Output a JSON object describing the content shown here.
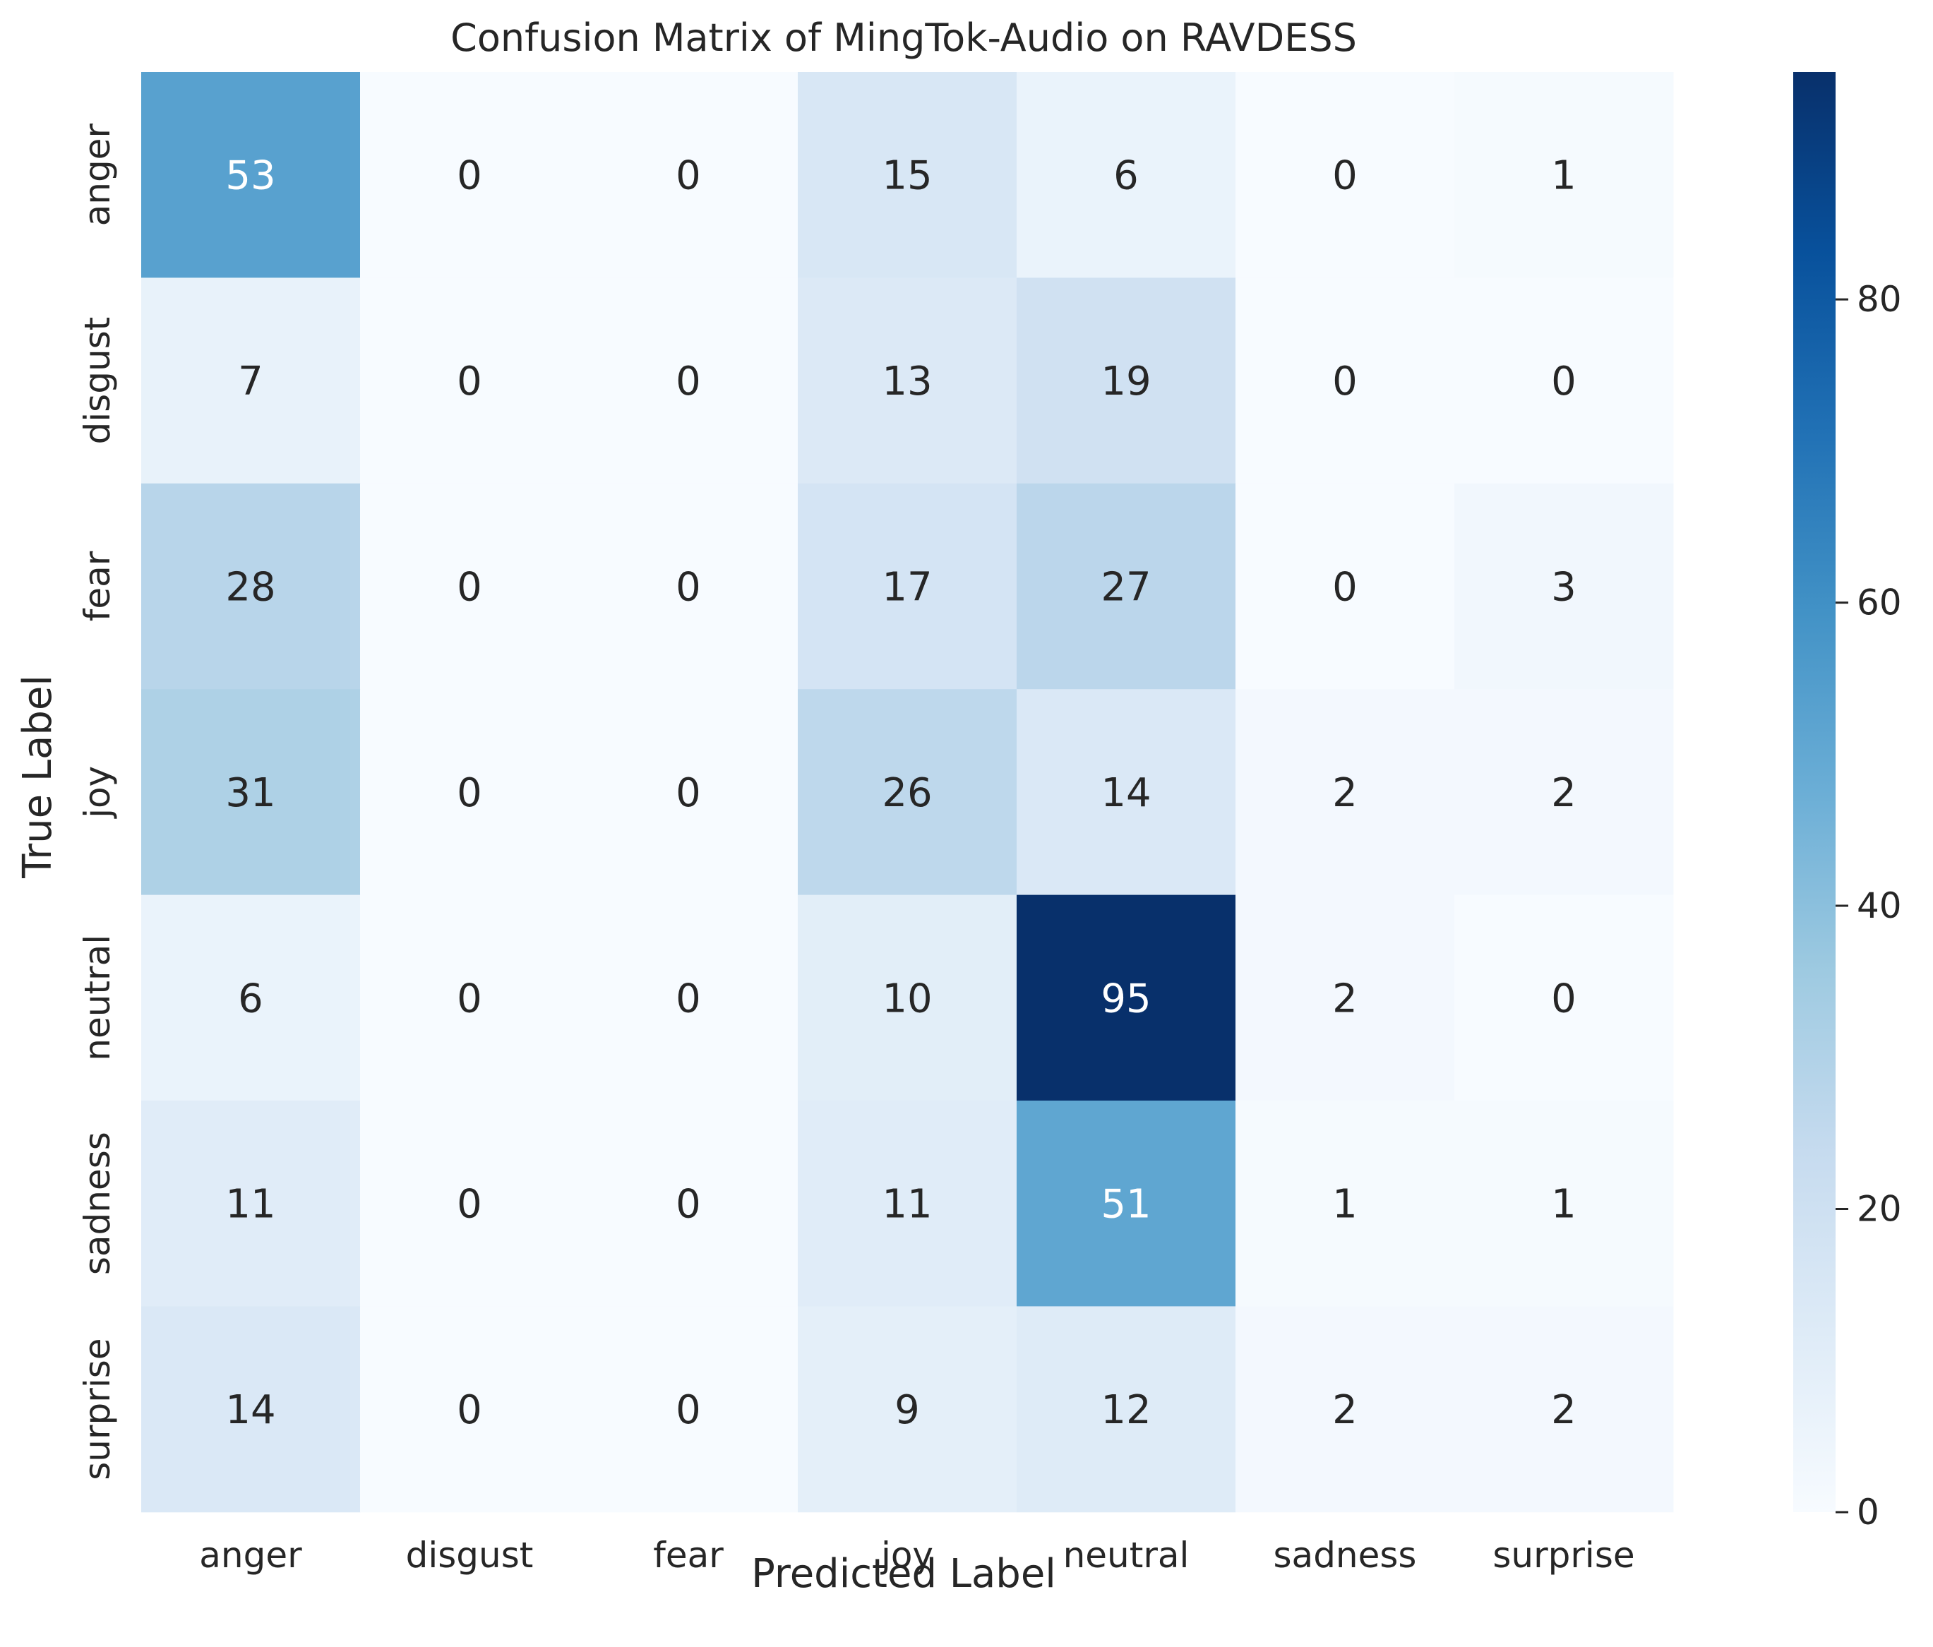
{
  "chart_data": {
    "type": "heatmap",
    "title": "Confusion Matrix of MingTok-Audio on RAVDESS",
    "xlabel": "Predicted Label",
    "ylabel": "True Label",
    "row_labels": [
      "anger",
      "disgust",
      "fear",
      "joy",
      "neutral",
      "sadness",
      "surprise"
    ],
    "col_labels": [
      "anger",
      "disgust",
      "fear",
      "joy",
      "neutral",
      "sadness",
      "surprise"
    ],
    "values": [
      [
        53,
        0,
        0,
        15,
        6,
        0,
        1
      ],
      [
        7,
        0,
        0,
        13,
        19,
        0,
        0
      ],
      [
        28,
        0,
        0,
        17,
        27,
        0,
        3
      ],
      [
        31,
        0,
        0,
        26,
        14,
        2,
        2
      ],
      [
        6,
        0,
        0,
        10,
        95,
        2,
        0
      ],
      [
        11,
        0,
        0,
        11,
        51,
        1,
        1
      ],
      [
        14,
        0,
        0,
        9,
        12,
        2,
        2
      ]
    ],
    "colormap": "Blues",
    "vmin": 0,
    "vmax": 95,
    "colorbar_ticks": [
      "0",
      "20",
      "40",
      "60",
      "80"
    ],
    "colors": {
      "low": "#f7fbff",
      "high": "#08306b",
      "text_dark": "#262626",
      "text_light": "#ffffff"
    }
  }
}
